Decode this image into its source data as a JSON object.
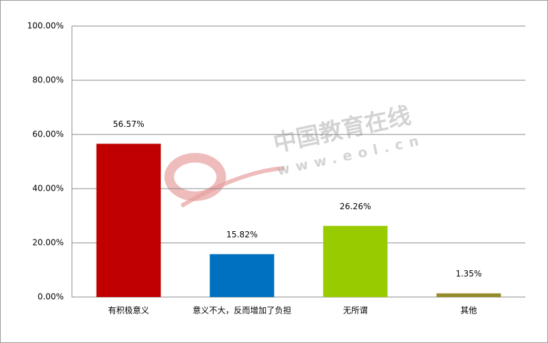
{
  "chart_data": {
    "type": "bar",
    "categories": [
      "有积极意义",
      "意义不大，反而增加了负担",
      "无所谓",
      "其他"
    ],
    "values": [
      56.57,
      15.82,
      26.26,
      1.35
    ],
    "value_labels": [
      "56.57%",
      "15.82%",
      "26.26%",
      "1.35%"
    ],
    "colors": [
      "#c00000",
      "#0070c0",
      "#99cc00",
      "#938a28"
    ],
    "ylim": [
      0,
      100
    ],
    "yticks": [
      {
        "value": 0,
        "label": "0.00%"
      },
      {
        "value": 20,
        "label": "20.00%"
      },
      {
        "value": 40,
        "label": "40.00%"
      },
      {
        "value": 60,
        "label": "60.00%"
      },
      {
        "value": 80,
        "label": "80.00%"
      },
      {
        "value": 100,
        "label": "100.00%"
      }
    ],
    "grid": true
  },
  "watermark": {
    "name": "中国教育在线",
    "url": "www.eol.cn"
  }
}
